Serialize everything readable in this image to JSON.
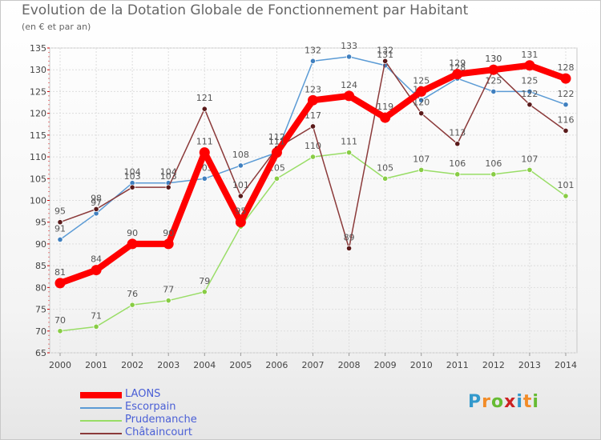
{
  "title": "Evolution de la Dotation Globale de Fonctionnement par Habitant",
  "subtitle": "(en € et par an)",
  "logo": {
    "text": "Proxiti",
    "colors": [
      "#3399cc",
      "#f28c28",
      "#66bb33",
      "#cc2222",
      "#3399cc",
      "#f28c28",
      "#66bb33"
    ]
  },
  "chart_data": {
    "type": "line",
    "title": "Evolution de la Dotation Globale de Fonctionnement par Habitant",
    "subtitle": "(en € et par an)",
    "xlabel": "",
    "ylabel": "",
    "ylim": [
      65,
      135
    ],
    "yticks": [
      65,
      70,
      75,
      80,
      85,
      90,
      95,
      100,
      105,
      110,
      115,
      120,
      125,
      130,
      135
    ],
    "x": [
      "2000",
      "2001",
      "2002",
      "2003",
      "2004",
      "2005",
      "2006",
      "2007",
      "2008",
      "2009",
      "2010",
      "2011",
      "2012",
      "2013",
      "2014"
    ],
    "grid": true,
    "legend_position": "bottom-left",
    "series": [
      {
        "name": "Escorpain",
        "color": "#5b9bd5",
        "marker": "#3f7fbf",
        "values": [
          91,
          97,
          104,
          104,
          105,
          108,
          111,
          132,
          133,
          131,
          123,
          128,
          125,
          125,
          122
        ]
      },
      {
        "name": "Prudemanche",
        "color": "#99dd66",
        "marker": "#88cc44",
        "values": [
          70,
          71,
          76,
          77,
          79,
          94,
          105,
          110,
          111,
          105,
          107,
          106,
          106,
          107,
          101
        ]
      },
      {
        "name": "Châtaincourt",
        "color": "#8b3a3a",
        "marker": "#5a1a1a",
        "values": [
          95,
          98,
          103,
          103,
          121,
          101,
          112,
          117,
          89,
          132,
          120,
          113,
          130,
          122,
          116
        ]
      },
      {
        "name": "LAONS",
        "color": "#ff0000",
        "marker": "#ff0000",
        "values": [
          81,
          84,
          90,
          90,
          111,
          95,
          111,
          123,
          124,
          119,
          125,
          129,
          130,
          131,
          128
        ]
      }
    ],
    "legend": [
      "LAONS",
      "Escorpain",
      "Prudemanche",
      "Châtaincourt"
    ]
  }
}
